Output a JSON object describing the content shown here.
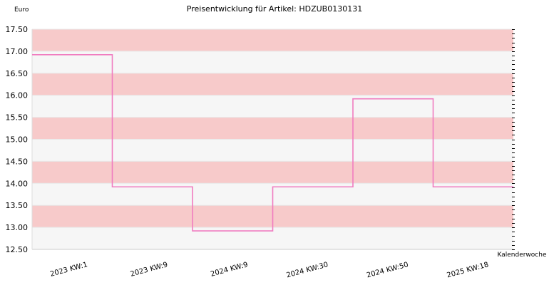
{
  "chart_data": {
    "type": "line",
    "step": true,
    "title": "Preisentwicklung für Artikel: HDZUB0130131",
    "ylabel": "Euro",
    "xlabel": "Kalenderwoche",
    "ylim": [
      12.5,
      17.5
    ],
    "yticks": [
      "12.50",
      "13.00",
      "13.50",
      "14.00",
      "14.50",
      "15.00",
      "15.50",
      "16.00",
      "16.50",
      "17.00",
      "17.50"
    ],
    "categories": [
      "2023 KW:1",
      "2023 KW:9",
      "2024 KW:9",
      "2024 KW:30",
      "2024 KW:50",
      "2025 KW:18"
    ],
    "values": [
      16.92,
      13.92,
      12.92,
      13.92,
      15.92,
      13.92
    ],
    "grid": true,
    "colors": {
      "line": "#f07cc0",
      "band_dark": "#f7caca",
      "band_light": "#f6f6f6",
      "grid": "#e8e8e8"
    }
  }
}
